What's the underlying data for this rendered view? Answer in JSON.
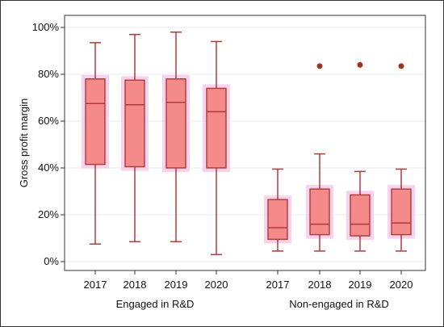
{
  "chart_data": {
    "type": "box",
    "ylabel": "Gross profit margin",
    "ylim": [
      0,
      100
    ],
    "yticks": [
      {
        "value": 0,
        "label": "0%"
      },
      {
        "value": 20,
        "label": "20%"
      },
      {
        "value": 40,
        "label": "40%"
      },
      {
        "value": 60,
        "label": "60%"
      },
      {
        "value": 80,
        "label": "80%"
      },
      {
        "value": 100,
        "label": "100%"
      }
    ],
    "grid": true,
    "groups": [
      {
        "label": "Engaged in R&D",
        "boxes": [
          {
            "category": "2017",
            "whisker_low": 7.5,
            "q1": 41.5,
            "median": 67.5,
            "q3": 78,
            "whisker_high": 93.5,
            "outliers": []
          },
          {
            "category": "2018",
            "whisker_low": 8.5,
            "q1": 40.5,
            "median": 67,
            "q3": 77.5,
            "whisker_high": 97,
            "outliers": []
          },
          {
            "category": "2019",
            "whisker_low": 8.5,
            "q1": 40,
            "median": 68,
            "q3": 78,
            "whisker_high": 98,
            "outliers": []
          },
          {
            "category": "2020",
            "whisker_low": 3,
            "q1": 40,
            "median": 64,
            "q3": 74,
            "whisker_high": 94,
            "outliers": []
          }
        ]
      },
      {
        "label": "Non-engaged in R&D",
        "boxes": [
          {
            "category": "2017",
            "whisker_low": 4.5,
            "q1": 9.5,
            "median": 14.5,
            "q3": 26.5,
            "whisker_high": 39.5,
            "outliers": []
          },
          {
            "category": "2018",
            "whisker_low": 4.5,
            "q1": 11.5,
            "median": 16,
            "q3": 31,
            "whisker_high": 46,
            "outliers": [
              83.5
            ]
          },
          {
            "category": "2019",
            "whisker_low": 4.5,
            "q1": 11,
            "median": 16,
            "q3": 28.5,
            "whisker_high": 38.5,
            "outliers": [
              84
            ]
          },
          {
            "category": "2020",
            "whisker_low": 4.5,
            "q1": 11.5,
            "median": 16.5,
            "q3": 31,
            "whisker_high": 39.5,
            "outliers": [
              83.5
            ]
          }
        ]
      }
    ],
    "colors": {
      "box_fill": "#f48a8a",
      "box_stroke": "#b23a3a",
      "box_glow": "#f7c7e8",
      "outlier": "#a6311c",
      "grid": "#e6eef0",
      "frame": "#333333"
    }
  }
}
